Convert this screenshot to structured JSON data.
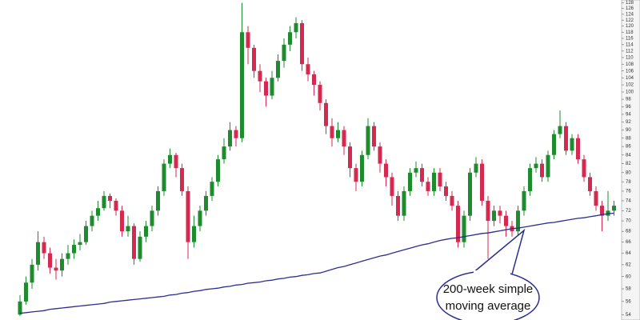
{
  "chart_data": {
    "type": "candlestick",
    "log_scale": true,
    "ylim": [
      53.2,
      129
    ],
    "yticks": [
      54,
      56,
      58,
      60,
      62,
      64,
      66,
      68,
      70,
      72,
      74,
      76,
      78,
      80,
      82,
      84,
      86,
      88,
      90,
      92,
      94,
      96,
      98,
      100,
      102,
      104,
      106,
      108,
      110,
      112,
      114,
      116,
      118,
      120,
      122,
      124,
      126,
      128
    ],
    "up_color": "#1e8c2e",
    "down_color": "#d42a52",
    "ma_color": "#2b2f8f",
    "open": [
      54,
      56,
      59,
      62,
      66,
      64,
      61.5,
      61,
      63,
      64,
      65.5,
      66,
      69,
      71,
      72.5,
      75,
      74,
      72,
      68,
      69,
      63,
      67,
      69,
      72,
      76,
      82,
      84,
      81,
      76,
      66,
      69,
      72,
      75,
      78,
      83,
      86,
      90,
      88,
      118,
      113,
      106,
      103,
      99,
      104,
      109,
      114,
      118,
      121,
      108,
      105,
      102,
      97,
      91,
      88,
      90,
      86,
      81,
      78,
      84,
      91,
      86,
      82,
      79,
      75,
      71,
      76,
      80,
      81,
      78,
      76,
      80,
      77,
      75,
      73,
      66,
      71,
      80,
      82,
      74,
      70,
      72,
      71,
      69,
      68,
      72,
      76,
      81,
      82,
      79,
      84,
      89,
      91,
      85,
      88,
      83,
      79,
      76,
      73,
      71,
      72
    ],
    "high": [
      57,
      60,
      63,
      68,
      67,
      65,
      63,
      64,
      65.5,
      66.5,
      67.5,
      70,
      72,
      74,
      76,
      75.5,
      74.5,
      73,
      71,
      69.5,
      68,
      70,
      73,
      77,
      83,
      85.5,
      84.5,
      82,
      77,
      71,
      73,
      76,
      79,
      84,
      88,
      92,
      91,
      128,
      120,
      114,
      108,
      104,
      106,
      111,
      116,
      120,
      123,
      122,
      110,
      106,
      103,
      98,
      93,
      92,
      91,
      87,
      82,
      85,
      93,
      92,
      87,
      83,
      80,
      76,
      77,
      81,
      82.5,
      82,
      79,
      81,
      81,
      78,
      76,
      74,
      72,
      81,
      83.5,
      83,
      75,
      73,
      73,
      72,
      70,
      73,
      77,
      82,
      83.5,
      83,
      85,
      90,
      95,
      92,
      89,
      89,
      84,
      80,
      77,
      74,
      76,
      74
    ],
    "low": [
      53.8,
      55.5,
      58,
      61,
      63,
      60.5,
      59.5,
      60,
      62,
      63,
      64.5,
      65.5,
      68,
      70,
      72,
      72.5,
      71,
      67,
      67,
      62,
      62.5,
      66,
      68,
      71,
      75,
      81,
      79,
      75,
      63,
      65,
      68,
      71,
      74,
      77,
      82,
      85,
      86,
      87,
      108,
      104,
      100,
      96,
      98,
      103,
      107,
      112,
      116,
      106,
      103,
      99,
      95,
      89,
      86,
      87,
      84,
      79,
      76,
      77,
      83,
      85,
      80,
      77,
      73,
      70,
      70,
      75,
      79,
      77,
      75,
      75,
      76,
      74,
      72,
      65,
      65,
      70,
      79,
      73,
      63,
      69,
      69.5,
      67,
      67,
      67,
      71,
      75,
      80,
      78,
      78,
      83,
      88,
      84,
      84,
      82,
      78,
      75,
      72,
      68,
      70,
      71
    ],
    "close": [
      56,
      59,
      62,
      66,
      64,
      61.5,
      61,
      63,
      64,
      65.5,
      66,
      69,
      71,
      72.5,
      75,
      74,
      72,
      68,
      69,
      63,
      67,
      69,
      72,
      76,
      82,
      84,
      81,
      76,
      66,
      69,
      72,
      75,
      78,
      83,
      86,
      90,
      88,
      118,
      113,
      106,
      103,
      99,
      104,
      109,
      114,
      118,
      121,
      108,
      105,
      102,
      97,
      91,
      88,
      90,
      86,
      81,
      78,
      84,
      91,
      86,
      82,
      79,
      75,
      71,
      76,
      80,
      81,
      78,
      76,
      80,
      77,
      75,
      73,
      66,
      71,
      80,
      82,
      74,
      70,
      72,
      71,
      69,
      68,
      72,
      76,
      81,
      82,
      79,
      84,
      89,
      91,
      85,
      88,
      83,
      79,
      76,
      73,
      71,
      72,
      73
    ],
    "ma": [
      54.2,
      54.3,
      54.4,
      54.5,
      54.6,
      54.8,
      54.9,
      55.0,
      55.1,
      55.2,
      55.3,
      55.4,
      55.5,
      55.6,
      55.7,
      55.9,
      56.0,
      56.1,
      56.2,
      56.3,
      56.4,
      56.5,
      56.6,
      56.7,
      56.8,
      57.0,
      57.1,
      57.3,
      57.4,
      57.6,
      57.7,
      57.9,
      58.0,
      58.1,
      58.3,
      58.4,
      58.6,
      58.7,
      58.9,
      59.0,
      59.1,
      59.3,
      59.4,
      59.6,
      59.7,
      59.9,
      60.0,
      60.2,
      60.3,
      60.5,
      60.6,
      60.9,
      61.2,
      61.5,
      61.7,
      62.0,
      62.3,
      62.6,
      62.9,
      63.2,
      63.5,
      63.7,
      64.0,
      64.3,
      64.6,
      64.9,
      65.2,
      65.5,
      65.7,
      66.0,
      66.3,
      66.5,
      66.7,
      66.8,
      67.0,
      67.2,
      67.4,
      67.6,
      67.7,
      67.9,
      68.1,
      68.3,
      68.5,
      68.6,
      68.8,
      69.0,
      69.2,
      69.4,
      69.6,
      69.7,
      69.9,
      70.1,
      70.3,
      70.5,
      70.6,
      70.8,
      71.0,
      71.2,
      71.4,
      71.5
    ],
    "annotation": [
      "200-week simple",
      "moving average"
    ]
  }
}
